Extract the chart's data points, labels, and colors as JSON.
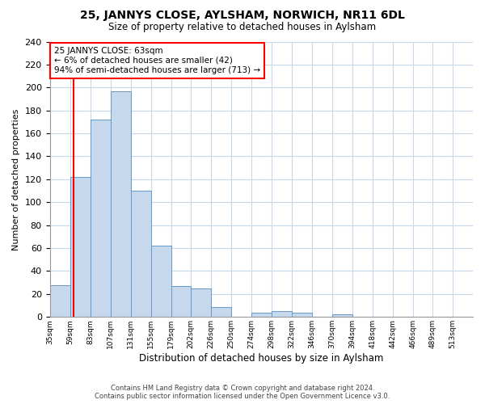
{
  "title": "25, JANNYS CLOSE, AYLSHAM, NORWICH, NR11 6DL",
  "subtitle": "Size of property relative to detached houses in Aylsham",
  "xlabel": "Distribution of detached houses by size in Aylsham",
  "ylabel": "Number of detached properties",
  "bin_labels": [
    "35sqm",
    "59sqm",
    "83sqm",
    "107sqm",
    "131sqm",
    "155sqm",
    "179sqm",
    "202sqm",
    "226sqm",
    "250sqm",
    "274sqm",
    "298sqm",
    "322sqm",
    "346sqm",
    "370sqm",
    "394sqm",
    "418sqm",
    "442sqm",
    "466sqm",
    "489sqm",
    "513sqm"
  ],
  "bar_heights": [
    28,
    122,
    172,
    197,
    110,
    62,
    27,
    25,
    9,
    0,
    4,
    5,
    4,
    0,
    2,
    0,
    0,
    0,
    0,
    0,
    0
  ],
  "bar_color": "#c5d8ec",
  "bar_edge_color": "#6699cc",
  "property_line_x": 63,
  "bin_edges": [
    35,
    59,
    83,
    107,
    131,
    155,
    179,
    202,
    226,
    250,
    274,
    298,
    322,
    346,
    370,
    394,
    418,
    442,
    466,
    489,
    513,
    537
  ],
  "ylim": [
    0,
    240
  ],
  "yticks": [
    0,
    20,
    40,
    60,
    80,
    100,
    120,
    140,
    160,
    180,
    200,
    220,
    240
  ],
  "annotation_line1": "25 JANNYS CLOSE: 63sqm",
  "annotation_line2": "← 6% of detached houses are smaller (42)",
  "annotation_line3": "94% of semi-detached houses are larger (713) →",
  "footer_line1": "Contains HM Land Registry data © Crown copyright and database right 2024.",
  "footer_line2": "Contains public sector information licensed under the Open Government Licence v3.0.",
  "bg_color": "#ffffff",
  "grid_color": "#c8d8e8"
}
